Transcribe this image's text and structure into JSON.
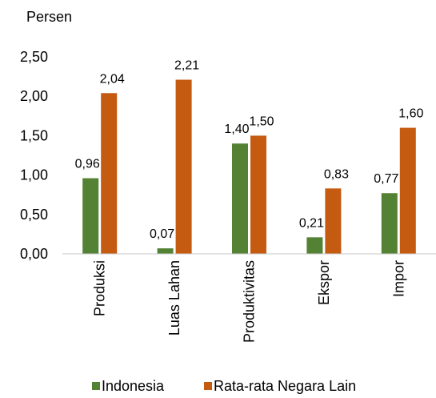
{
  "chart_data": {
    "type": "bar",
    "ylabel": "Persen",
    "categories": [
      "Produksi",
      "Luas Lahan",
      "Produktivitas",
      "Ekspor",
      "Impor"
    ],
    "series": [
      {
        "name": "Indonesia",
        "values": [
          0.96,
          0.07,
          1.4,
          0.21,
          0.77
        ],
        "value_labels": [
          "0,96",
          "0,07",
          "1,40",
          "0,21",
          "0,77"
        ],
        "color": "#548235"
      },
      {
        "name": "Rata-rata Negara Lain",
        "values": [
          2.04,
          2.21,
          1.5,
          0.83,
          1.6
        ],
        "value_labels": [
          "2,04",
          "2,21",
          "1,50",
          "0,83",
          "1,60"
        ],
        "color": "#C55A11"
      }
    ],
    "ylim": [
      0,
      2.5
    ],
    "yticks": [
      0,
      0.5,
      1.0,
      1.5,
      2.0,
      2.5
    ],
    "ytick_labels": [
      "0,00",
      "0,50",
      "1,00",
      "1,50",
      "2,00",
      "2,50"
    ],
    "grid": false,
    "legend_position": "bottom"
  }
}
